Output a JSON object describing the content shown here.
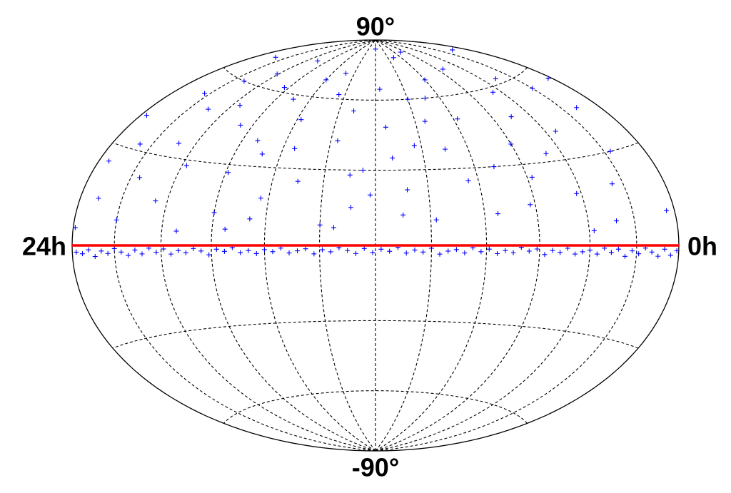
{
  "chart_data": {
    "type": "scatter",
    "projection": "hammer-aitoff",
    "xticks": [
      {
        "value": 24,
        "label": "24h"
      },
      {
        "value": 0,
        "label": "0h"
      }
    ],
    "yticks": [
      {
        "value": 90,
        "label": "90°"
      },
      {
        "value": -90,
        "label": "-90°"
      }
    ],
    "xlim": [
      24,
      0
    ],
    "ylim": [
      -90,
      90
    ],
    "grid_x": [
      2,
      4,
      6,
      8,
      10,
      12,
      14,
      16,
      18,
      20,
      22
    ],
    "grid_y": [
      -60,
      -30,
      30,
      60
    ],
    "hline": {
      "value": 0,
      "color": "#ff0000"
    },
    "color": "#0000ff",
    "x": [
      1.2,
      2.5,
      3.1,
      0.4,
      4.7,
      5.5,
      6.2,
      7.8,
      8.4,
      9.1,
      10.3,
      11.0,
      11.7,
      12.5,
      13.2,
      14.0,
      14.8,
      15.5,
      16.3,
      17.0,
      17.9,
      18.6,
      19.4,
      20.1,
      20.8,
      21.6,
      22.3,
      23.1,
      23.7,
      0.9,
      2.0,
      3.8,
      5.0,
      6.8,
      7.2,
      8.9,
      9.8,
      10.8,
      12.0,
      12.9,
      13.7,
      15.0,
      16.0,
      16.8,
      18.0,
      19.0,
      19.8,
      21.0,
      22.0,
      22.8,
      23.5,
      1.7,
      4.2,
      6.0,
      9.5,
      11.3,
      13.5,
      15.8,
      17.5,
      20.5,
      0.2,
      3.5,
      5.8,
      7.5,
      8.0,
      10.0,
      11.5,
      12.2,
      14.4,
      16.6,
      18.3,
      21.3,
      22.6,
      23.9,
      4.5,
      9.0,
      13.0,
      17.3,
      19.6,
      2.8,
      0.1,
      0.4,
      0.7,
      1.0,
      1.3,
      1.6,
      1.9,
      2.2,
      2.5,
      2.8,
      3.1,
      3.4,
      3.7,
      4.0,
      4.3,
      4.6,
      4.9,
      5.2,
      5.5,
      5.8,
      6.1,
      6.4,
      6.7,
      7.0,
      7.3,
      7.6,
      7.9,
      8.2,
      8.5,
      8.8,
      9.1,
      9.4,
      9.7,
      10.0,
      10.3,
      10.6,
      10.9,
      11.2,
      11.5,
      11.8,
      12.1,
      12.4,
      12.7,
      13.0,
      13.3,
      13.6,
      13.9,
      14.2,
      14.5,
      14.8,
      15.1,
      15.4,
      15.7,
      16.0,
      16.3,
      16.6,
      16.9,
      17.2,
      17.5,
      17.8,
      18.1,
      18.4,
      18.7,
      19.0,
      19.3,
      19.6,
      19.9,
      20.2,
      20.5,
      20.8,
      21.1,
      21.4,
      21.7,
      22.0,
      22.3,
      22.6,
      22.9,
      23.2,
      23.5,
      23.8
    ],
    "values": [
      45,
      20,
      62,
      10,
      33,
      71,
      15,
      50,
      25,
      80,
      40,
      12,
      65,
      30,
      55,
      8,
      72,
      38,
      18,
      58,
      27,
      45,
      5,
      66,
      35,
      22,
      52,
      14,
      40,
      75,
      55,
      5,
      48,
      82,
      30,
      60,
      10,
      22,
      85,
      15,
      42,
      25,
      68,
      35,
      12,
      75,
      28,
      48,
      8,
      70,
      25,
      30,
      18,
      38,
      50,
      35,
      7,
      50,
      6,
      15,
      55,
      40,
      25,
      12,
      68,
      60,
      48,
      20,
      62,
      10,
      62,
      60,
      32,
      5,
      58,
      38,
      28,
      40,
      52,
      8,
      -1.5,
      -2.8,
      -1.1,
      -3.2,
      -2.0,
      -0.8,
      -2.6,
      -1.7,
      -3.5,
      -1.2,
      -2.3,
      -0.9,
      -2.9,
      -1.6,
      -2.2,
      -3.0,
      -1.0,
      -2.5,
      -1.8,
      -3.3,
      -1.3,
      -2.1,
      -0.7,
      -2.7,
      -1.9,
      -3.1,
      -1.4,
      -2.4,
      -0.9,
      -2.9,
      -1.6,
      -2.2,
      -3.4,
      -1.1,
      -2.6,
      -1.8,
      -3.0,
      -0.8,
      -2.3,
      -1.5,
      -2.8,
      -1.2,
      -3.2,
      -2.0,
      -0.9,
      -2.5,
      -1.7,
      -3.3,
      -1.3,
      -2.1,
      -2.9,
      -1.0,
      -2.4,
      -1.6,
      -3.1,
      -1.9,
      -2.7,
      -0.8,
      -2.2,
      -1.4,
      -3.4,
      -2.0,
      -1.1,
      -2.6,
      -1.8,
      -3.0,
      -1.2,
      -2.3,
      -0.9,
      -2.8,
      -1.5,
      -3.2,
      -2.1,
      -1.0,
      -2.5,
      -1.7,
      -3.3,
      -1.3,
      -2.4,
      -1.9
    ]
  }
}
